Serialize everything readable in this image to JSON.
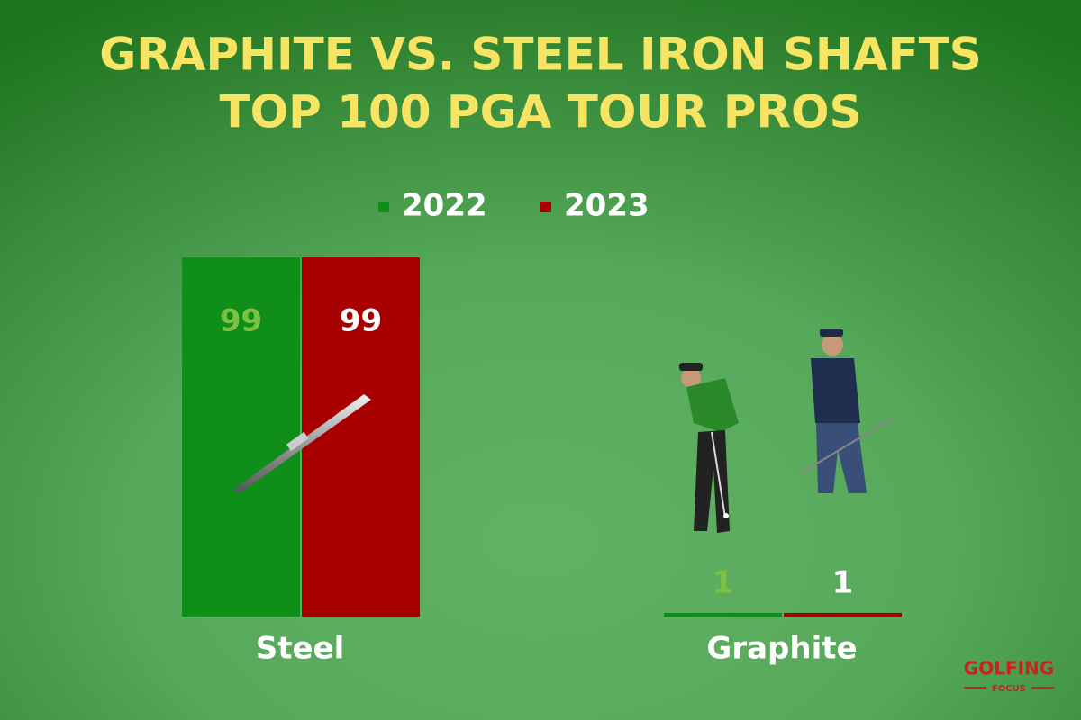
{
  "chart_data": {
    "type": "bar",
    "title": "GRAPHITE VS. STEEL IRON SHAFTS",
    "subtitle": "TOP 100 PGA TOUR PROS",
    "categories": [
      "Steel",
      "Graphite"
    ],
    "series": [
      {
        "name": "2022",
        "color": "#0f8f1a",
        "label_color": "#7cc242",
        "values": [
          99,
          1
        ]
      },
      {
        "name": "2023",
        "color": "#a80000",
        "label_color": "#ffffff",
        "values": [
          99,
          1
        ]
      }
    ],
    "legend": "top"
  },
  "logo": {
    "line1": "GOLFING",
    "line2": "FOCUS"
  }
}
